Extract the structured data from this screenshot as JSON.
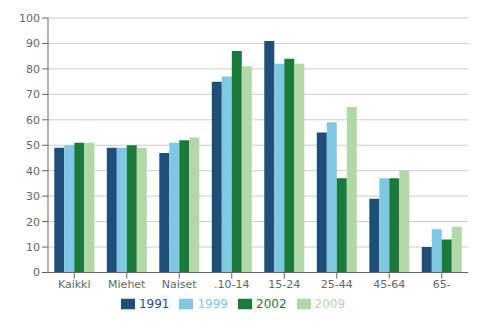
{
  "chart_data": {
    "type": "bar",
    "categories": [
      "Kaikki",
      "Miehet",
      "Naiset",
      ".10-14",
      "15-24",
      "25-44",
      "45-64",
      "65-"
    ],
    "series": [
      {
        "name": "1991",
        "color": "#1F4E79",
        "values": [
          49,
          49,
          47,
          75,
          91,
          55,
          29,
          10
        ]
      },
      {
        "name": "1999",
        "color": "#7EC8E3",
        "values": [
          50,
          49,
          51,
          77,
          82,
          59,
          37,
          17
        ]
      },
      {
        "name": "2002",
        "color": "#1A7A3C",
        "values": [
          51,
          50,
          52,
          87,
          84,
          37,
          37,
          13
        ]
      },
      {
        "name": "2009",
        "color": "#B2D8A8",
        "values": [
          51,
          49,
          53,
          81,
          82,
          65,
          40,
          18
        ]
      }
    ],
    "ylim": [
      0,
      100
    ],
    "yticks": [
      0,
      10,
      20,
      30,
      40,
      50,
      60,
      70,
      80,
      90,
      100
    ],
    "grid": true,
    "legend": "bottom"
  }
}
